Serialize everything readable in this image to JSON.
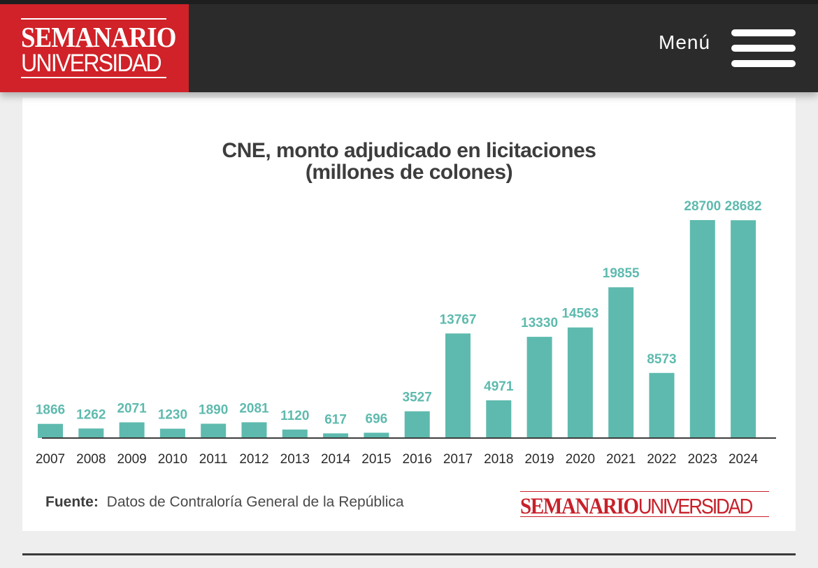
{
  "header": {
    "logo_top": "SEMANARIO",
    "logo_bottom": "UNIVERSIDAD",
    "menu_label": "Menú"
  },
  "colors": {
    "header_bg": "#2b2b2b",
    "brand_red": "#d02228",
    "bar": "#5ebaae",
    "label": "#5ebaae",
    "axis": "#3d3d3d"
  },
  "footer": {
    "source_label": "Fuente:",
    "source_text": "Datos de Contraloría General de la República",
    "brand_a": "SEMANARIO",
    "brand_b": "UNIVERSIDAD"
  },
  "chart_data": {
    "type": "bar",
    "title_line1": "CNE, monto adjudicado en licitaciones",
    "title_line2": "(millones de colones)",
    "categories": [
      "2007",
      "2008",
      "2009",
      "2010",
      "2011",
      "2012",
      "2013",
      "2014",
      "2015",
      "2016",
      "2017",
      "2018",
      "2019",
      "2020",
      "2021",
      "2022",
      "2023",
      "2024"
    ],
    "values": [
      1866,
      1262,
      2071,
      1230,
      1890,
      2081,
      1120,
      617,
      696,
      3527,
      13767,
      4971,
      13330,
      14563,
      19855,
      8573,
      28700,
      28682
    ],
    "xlabel": "",
    "ylabel": "",
    "ylim": [
      0,
      28700
    ],
    "grid": false,
    "legend": "none",
    "data_labels": true
  }
}
